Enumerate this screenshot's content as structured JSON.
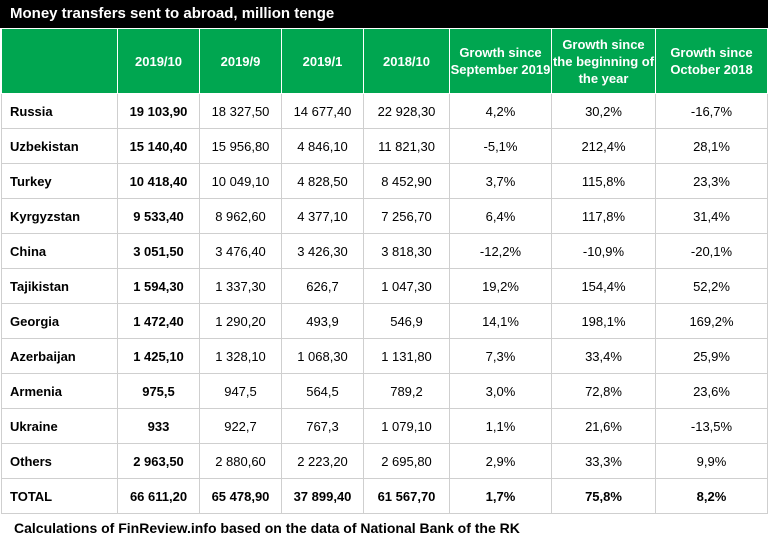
{
  "title": "Money transfers sent to abroad, million tenge",
  "chart_data": {
    "type": "table",
    "columns": [
      "",
      "2019/10",
      "2019/9",
      "2019/1",
      "2018/10",
      "Growth since September 2019",
      "Growth since the beginning of the year",
      "Growth since October 2018"
    ],
    "rows": [
      [
        "Russia",
        "19 103,90",
        "18 327,50",
        "14 677,40",
        "22 928,30",
        "4,2%",
        "30,2%",
        "-16,7%"
      ],
      [
        "Uzbekistan",
        "15 140,40",
        "15 956,80",
        "4 846,10",
        "11 821,30",
        "-5,1%",
        "212,4%",
        "28,1%"
      ],
      [
        "Turkey",
        "10 418,40",
        "10 049,10",
        "4 828,50",
        "8 452,90",
        "3,7%",
        "115,8%",
        "23,3%"
      ],
      [
        "Kyrgyzstan",
        "9 533,40",
        "8 962,60",
        "4 377,10",
        "7 256,70",
        "6,4%",
        "117,8%",
        "31,4%"
      ],
      [
        "China",
        "3 051,50",
        "3 476,40",
        "3 426,30",
        "3 818,30",
        "-12,2%",
        "-10,9%",
        "-20,1%"
      ],
      [
        "Tajikistan",
        "1 594,30",
        "1 337,30",
        "626,7",
        "1 047,30",
        "19,2%",
        "154,4%",
        "52,2%"
      ],
      [
        "Georgia",
        "1 472,40",
        "1 290,20",
        "493,9",
        "546,9",
        "14,1%",
        "198,1%",
        "169,2%"
      ],
      [
        "Azerbaijan",
        "1 425,10",
        "1 328,10",
        "1 068,30",
        "1 131,80",
        "7,3%",
        "33,4%",
        "25,9%"
      ],
      [
        "Armenia",
        "975,5",
        "947,5",
        "564,5",
        "789,2",
        "3,0%",
        "72,8%",
        "23,6%"
      ],
      [
        "Ukraine",
        "933",
        "922,7",
        "767,3",
        "1 079,10",
        "1,1%",
        "21,6%",
        "-13,5%"
      ],
      [
        "Others",
        "2 963,50",
        "2 880,60",
        "2 223,20",
        "2 695,80",
        "2,9%",
        "33,3%",
        "9,9%"
      ],
      [
        "TOTAL",
        "66 611,20",
        "65 478,90",
        "37 899,40",
        "61 567,70",
        "1,7%",
        "75,8%",
        "8,2%"
      ]
    ]
  },
  "footer": "Calculations of FinReview.info based on the data of National Bank of the RK",
  "colors": {
    "header_bg": "#00a650",
    "title_bg": "#000000"
  }
}
